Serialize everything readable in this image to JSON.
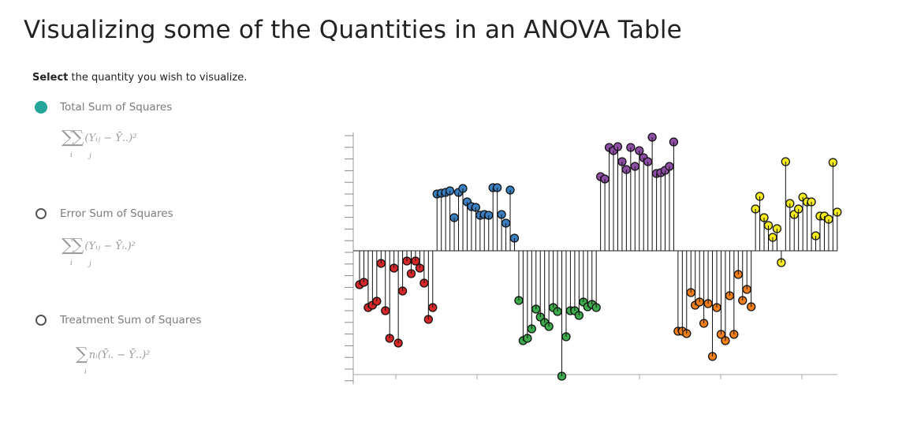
{
  "page_title": "Visualizing some of the Quantities in an ANOVA Table",
  "instruction": {
    "bold": "Select",
    "rest": " the quantity you wish to visualize."
  },
  "options": [
    {
      "label": "Total Sum of Squares",
      "formula": "(Yᵢⱼ − Ȳ..)²",
      "sub1": "i",
      "sub2": "j",
      "selected": true
    },
    {
      "label": "Error Sum of Squares",
      "formula": "(Yᵢⱼ − Ȳᵢ.)²",
      "sub1": "i",
      "sub2": "j",
      "selected": false
    },
    {
      "label": "Treatment Sum of Squares",
      "formula": "nᵢ(Ȳᵢ. − Ȳ..)²",
      "sub1": "i",
      "sub2": "",
      "selected": false
    }
  ],
  "colors": {
    "accent": "#26a69a",
    "red": "#d62728",
    "blue": "#3a7fc1",
    "green": "#3cab4b",
    "purple": "#8e4ea5",
    "orange": "#f07f1b",
    "yellow": "#f5eb1c"
  },
  "chart_data": {
    "type": "scatter",
    "title": "",
    "xlabel": "",
    "ylabel": "",
    "reference_line": 0,
    "ylim": [
      -1.6,
      1.45
    ],
    "series": [
      {
        "color": "red",
        "values": [
          -0.43,
          -0.4,
          -0.72,
          -0.69,
          -0.64,
          -0.16,
          -0.76,
          -1.11,
          -0.22,
          -1.17,
          -0.51,
          -0.13,
          -0.29,
          -0.13,
          -0.22,
          -0.41,
          -0.87,
          -0.72
        ]
      },
      {
        "color": "blue",
        "values": [
          0.72,
          0.73,
          0.74,
          0.76,
          0.42,
          0.74,
          0.79,
          0.62,
          0.56,
          0.55,
          0.45,
          0.46,
          0.45,
          0.8,
          0.8,
          0.46,
          0.35,
          0.77,
          0.16
        ]
      },
      {
        "color": "green",
        "values": [
          -0.63,
          -1.14,
          -1.11,
          -0.99,
          -0.74,
          -0.84,
          -0.91,
          -0.96,
          -0.72,
          -0.77,
          -1.59,
          -1.09,
          -0.76,
          -0.76,
          -0.82,
          -0.65,
          -0.71,
          -0.68,
          -0.72
        ]
      },
      {
        "color": "purple",
        "values": [
          0.94,
          0.91,
          1.31,
          1.27,
          1.32,
          1.13,
          1.03,
          1.31,
          1.07,
          1.27,
          1.18,
          1.13,
          1.44,
          0.98,
          0.99,
          1.02,
          1.07,
          1.38
        ]
      },
      {
        "color": "orange",
        "values": [
          -1.02,
          -1.02,
          -1.05,
          -0.53,
          -0.69,
          -0.65,
          -0.92,
          -0.67,
          -1.34,
          -0.72,
          -1.06,
          -1.14,
          -0.57,
          -1.06,
          -0.3,
          -0.63,
          -0.49,
          -0.71
        ]
      },
      {
        "color": "yellow",
        "values": [
          0.53,
          0.69,
          0.42,
          0.32,
          0.17,
          0.28,
          -0.15,
          1.13,
          0.6,
          0.46,
          0.53,
          0.68,
          0.62,
          0.62,
          0.19,
          0.44,
          0.44,
          0.4,
          1.12,
          0.49
        ]
      }
    ]
  }
}
